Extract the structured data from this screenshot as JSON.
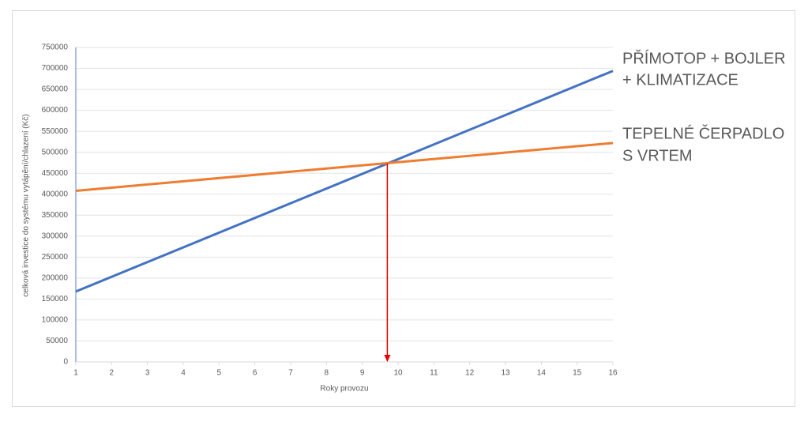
{
  "chart_data": {
    "type": "line",
    "x_label": "Roky provozu",
    "y_label": "celková investice do systému vytápění/chlazení (Kč)",
    "x": [
      1,
      16
    ],
    "series": [
      {
        "name_lines": [
          "PŘÍMOTOP + BOJLER",
          "+ KLIMATIZACE"
        ],
        "color": "#4472c4",
        "values": [
          168000,
          694000
        ]
      },
      {
        "name_lines": [
          "TEPELNÉ ČERPADLO",
          "S VRTEM"
        ],
        "color": "#ed7d31",
        "values": [
          408000,
          522000
        ]
      }
    ],
    "marker_x": 9.7,
    "marker_color": "#e00000",
    "xlim": [
      1,
      16
    ],
    "xticks": [
      1,
      2,
      3,
      4,
      5,
      6,
      7,
      8,
      9,
      10,
      11,
      12,
      13,
      14,
      15,
      16
    ],
    "ylim": [
      0,
      750000
    ],
    "yticks": [
      0,
      50000,
      100000,
      150000,
      200000,
      250000,
      300000,
      350000,
      400000,
      450000,
      500000,
      550000,
      600000,
      650000,
      700000,
      750000
    ],
    "grid": true
  }
}
